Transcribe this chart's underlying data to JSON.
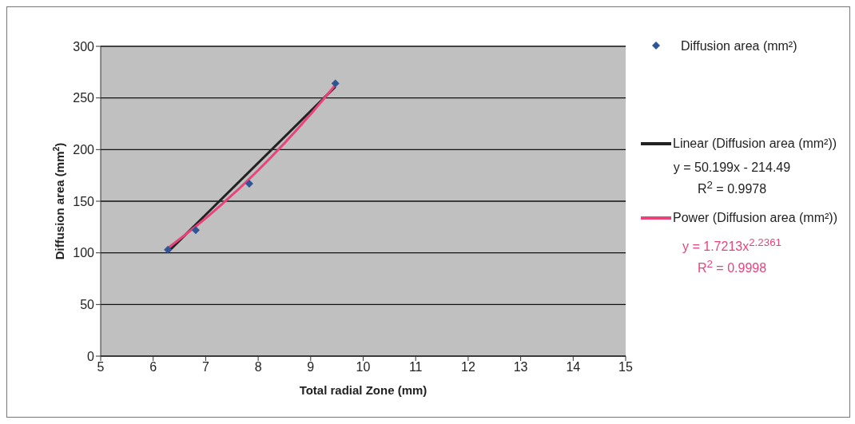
{
  "chart_data": {
    "type": "scatter",
    "xlabel": "Total radial Zone (mm)",
    "ylabel": "Diffusion area (mm$^{2}$)",
    "xlim": [
      5,
      15
    ],
    "xticks": [
      5,
      6,
      7,
      8,
      9,
      10,
      11,
      12,
      13,
      14,
      15
    ],
    "ylim": [
      0,
      300
    ],
    "yticks": [
      0,
      50,
      100,
      150,
      200,
      250,
      300
    ],
    "grid": "y",
    "legend": "right",
    "series": [
      {
        "name": "Diffusion area (mm²)",
        "marker": "diamond",
        "color": "#2f5597",
        "x": [
          6.28,
          6.81,
          7.83,
          9.47
        ],
        "values": [
          103,
          122,
          167,
          264
        ]
      },
      {
        "name": "Linear (Diffusion area (mm²))",
        "type": "line",
        "marker": "none",
        "color": "#222222",
        "x": [
          6.28,
          9.47
        ],
        "values": [
          100.8,
          260.9
        ]
      },
      {
        "name": "Power (Diffusion area (mm²))",
        "type": "line",
        "marker": "none",
        "color": "#e8447a",
        "x": [
          6.28,
          7,
          8,
          9,
          9.47
        ],
        "values": [
          104.6,
          133.5,
          180.0,
          234.3,
          262.5
        ]
      }
    ],
    "annotations": [
      "y = 50.199x - 214.49",
      "R$^{2}$ = 0.9978",
      "y = 1.7213x$^{2.2361}$",
      "R$^{2}$ = 0.9998"
    ]
  }
}
